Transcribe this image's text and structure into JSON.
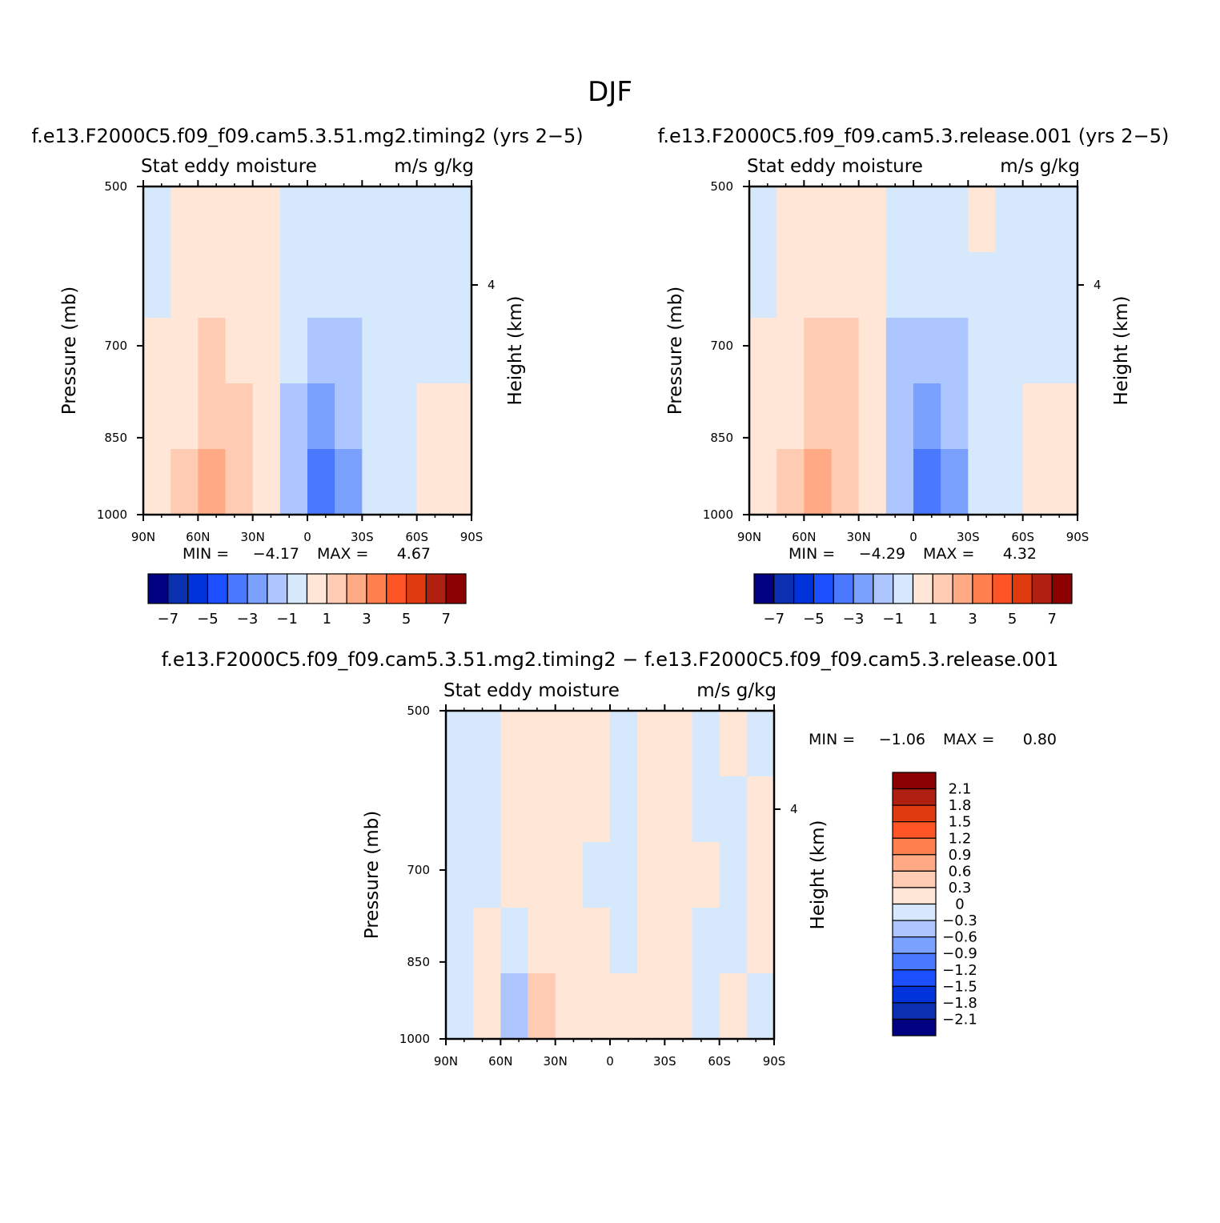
{
  "figure": {
    "season_title": "DJF"
  },
  "colors": {
    "diverging_17": [
      "#000080",
      "#0a2fb0",
      "#0032dc",
      "#1b4fff",
      "#4a79ff",
      "#7ba1ff",
      "#adc6ff",
      "#d6e8fb",
      "#ffe6d6",
      "#ffcbb3",
      "#ffaa85",
      "#ff7f4d",
      "#ff5426",
      "#e03a10",
      "#b02010",
      "#8b0000"
    ]
  },
  "chart_data": [
    {
      "type": "heatmap",
      "panel_title": "f.e13.F2000C5.f09_f09.cam5.3.51.mg2.timing2 (yrs 2−5)",
      "subtitle_left": "Stat eddy moisture",
      "subtitle_right": "m/s g/kg",
      "ylabel": "Pressure (mb)",
      "ylabel_right": "Height (km)",
      "x_ticks": [
        "90N",
        "60N",
        "30N",
        "0",
        "30S",
        "60S",
        "90S"
      ],
      "x_tick_values": [
        90,
        60,
        30,
        0,
        -30,
        -60,
        -90
      ],
      "y_ticks": [
        "500",
        "700",
        "850",
        "1000"
      ],
      "y_tick_values": [
        500,
        700,
        850,
        1000
      ],
      "y_right_ticks": [
        "4"
      ],
      "min_label": "MIN =",
      "min_value": "−4.17",
      "max_label": "MAX =",
      "max_value": "4.67",
      "colorbar_labels": [
        "−7",
        "−5",
        "−3",
        "−1",
        "1",
        "3",
        "5",
        "7"
      ],
      "colorbar_levels": [
        -7,
        -6,
        -5,
        -4,
        -3,
        -2,
        -1,
        0,
        1,
        2,
        3,
        4,
        5,
        6,
        7
      ],
      "grid": false,
      "field": [
        [
          -0.2,
          0.4,
          0.6,
          0.5,
          0.5,
          -0.5,
          -0.5,
          -0.4,
          -0.3,
          -0.3,
          -0.3,
          -0.2
        ],
        [
          -0.2,
          0.5,
          0.7,
          0.6,
          0.4,
          -0.6,
          -0.8,
          -0.6,
          -0.5,
          -0.3,
          -0.3,
          -0.2
        ],
        [
          0.3,
          0.6,
          1.2,
          1.0,
          0.5,
          -0.8,
          -1.5,
          -1.0,
          -0.4,
          -0.3,
          -0.2,
          -0.2
        ],
        [
          0.4,
          1.0,
          1.6,
          1.2,
          0.5,
          -1.2,
          -2.2,
          -1.5,
          -0.5,
          -0.2,
          0.2,
          0.3
        ],
        [
          0.5,
          1.4,
          2.2,
          1.6,
          0.6,
          -1.5,
          -3.0,
          -2.0,
          -0.5,
          -0.2,
          0.4,
          0.4
        ]
      ]
    },
    {
      "type": "heatmap",
      "panel_title": "f.e13.F2000C5.f09_f09.cam5.3.release.001 (yrs 2−5)",
      "subtitle_left": "Stat eddy moisture",
      "subtitle_right": "m/s g/kg",
      "ylabel": "Pressure (mb)",
      "ylabel_right": "Height (km)",
      "x_ticks": [
        "90N",
        "60N",
        "30N",
        "0",
        "30S",
        "60S",
        "90S"
      ],
      "x_tick_values": [
        90,
        60,
        30,
        0,
        -30,
        -60,
        -90
      ],
      "y_ticks": [
        "500",
        "700",
        "850",
        "1000"
      ],
      "y_tick_values": [
        500,
        700,
        850,
        1000
      ],
      "y_right_ticks": [
        "4"
      ],
      "min_label": "MIN =",
      "min_value": "−4.29",
      "max_label": "MAX =",
      "max_value": "4.32",
      "colorbar_labels": [
        "−7",
        "−5",
        "−3",
        "−1",
        "1",
        "3",
        "5",
        "7"
      ],
      "colorbar_levels": [
        -7,
        -6,
        -5,
        -4,
        -3,
        -2,
        -1,
        0,
        1,
        2,
        3,
        4,
        5,
        6,
        7
      ],
      "grid": false,
      "field": [
        [
          -0.2,
          0.4,
          0.5,
          0.5,
          0.5,
          -0.5,
          -0.5,
          -0.4,
          0.3,
          -0.3,
          -0.3,
          -0.2
        ],
        [
          -0.2,
          0.4,
          0.6,
          0.6,
          0.4,
          -0.7,
          -0.9,
          -0.6,
          -0.4,
          -0.3,
          -0.3,
          -0.2
        ],
        [
          0.3,
          0.6,
          1.3,
          1.1,
          0.5,
          -1.0,
          -1.8,
          -1.2,
          -0.4,
          -0.3,
          -0.2,
          -0.2
        ],
        [
          0.4,
          1.0,
          1.8,
          1.4,
          0.6,
          -1.3,
          -2.4,
          -1.5,
          -0.5,
          -0.2,
          0.2,
          0.3
        ],
        [
          0.5,
          1.5,
          2.4,
          1.8,
          0.6,
          -1.6,
          -3.2,
          -2.0,
          -0.5,
          -0.2,
          0.3,
          0.3
        ]
      ]
    },
    {
      "type": "heatmap",
      "panel_title": "f.e13.F2000C5.f09_f09.cam5.3.51.mg2.timing2 − f.e13.F2000C5.f09_f09.cam5.3.release.001",
      "subtitle_left": "Stat eddy moisture",
      "subtitle_right": "m/s g/kg",
      "ylabel": "Pressure (mb)",
      "ylabel_right": "Height (km)",
      "x_ticks": [
        "90N",
        "60N",
        "30N",
        "0",
        "30S",
        "60S",
        "90S"
      ],
      "x_tick_values": [
        90,
        60,
        30,
        0,
        -30,
        -60,
        -90
      ],
      "y_ticks": [
        "500",
        "700",
        "850",
        "1000"
      ],
      "y_tick_values": [
        500,
        700,
        850,
        1000
      ],
      "y_right_ticks": [
        "4"
      ],
      "min_label": "MIN =",
      "min_value": "−1.06",
      "max_label": "MAX =",
      "max_value": "0.80",
      "colorbar_labels": [
        "2.1",
        "1.8",
        "1.5",
        "1.2",
        "0.9",
        "0.6",
        "0.3",
        "0",
        "−0.3",
        "−0.6",
        "−0.9",
        "−1.2",
        "−1.5",
        "−1.8",
        "−2.1"
      ],
      "colorbar_levels": [
        2.1,
        1.8,
        1.5,
        1.2,
        0.9,
        0.6,
        0.3,
        0,
        -0.3,
        -0.6,
        -0.9,
        -1.2,
        -1.5,
        -1.8,
        -2.1
      ],
      "grid": false,
      "field": [
        [
          -0.1,
          -0.1,
          0.1,
          0.1,
          0.1,
          0.1,
          -0.1,
          0.1,
          0.1,
          -0.1,
          0.1,
          -0.1
        ],
        [
          -0.1,
          -0.1,
          0.1,
          0.1,
          0.1,
          0.1,
          -0.1,
          0.1,
          0.1,
          -0.1,
          -0.1,
          0.1
        ],
        [
          -0.1,
          -0.1,
          0.1,
          0.1,
          0.1,
          -0.1,
          -0.1,
          0.1,
          0.1,
          0.1,
          -0.1,
          0.1
        ],
        [
          -0.1,
          0.1,
          -0.1,
          0.1,
          0.1,
          0.1,
          -0.1,
          0.1,
          0.1,
          -0.1,
          -0.1,
          0.1
        ],
        [
          -0.1,
          0.1,
          -0.4,
          0.4,
          0.1,
          0.1,
          0.1,
          0.1,
          0.1,
          -0.1,
          0.1,
          -0.1
        ]
      ]
    }
  ]
}
